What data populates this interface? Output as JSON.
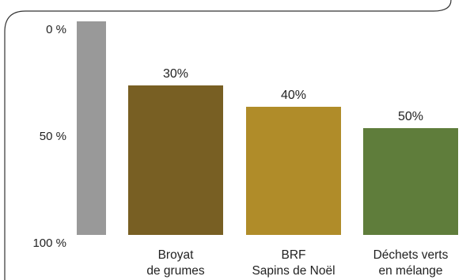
{
  "chart_data": {
    "type": "bar",
    "title": "",
    "xlabel": "",
    "ylabel": "",
    "y_axis": {
      "ticks": [
        {
          "value": 0,
          "label": "0 %"
        },
        {
          "value": 50,
          "label": "50 %"
        },
        {
          "value": 100,
          "label": "100 %"
        }
      ],
      "inverted": true,
      "ylim": [
        0,
        100
      ]
    },
    "grid": false,
    "categories": [
      {
        "lines": [
          "",
          ""
        ],
        "value": 0,
        "value_label": "",
        "color": "#999999"
      },
      {
        "lines": [
          "Broyat",
          "de grumes"
        ],
        "value": 30,
        "value_label": "30%",
        "color": "#785f23"
      },
      {
        "lines": [
          "BRF",
          "Sapins de Noël"
        ],
        "value": 40,
        "value_label": "40%",
        "color": "#b08c29"
      },
      {
        "lines": [
          "Déchets verts",
          "en mélange"
        ],
        "value": 50,
        "value_label": "50%",
        "color": "#5f7d3b"
      }
    ]
  }
}
